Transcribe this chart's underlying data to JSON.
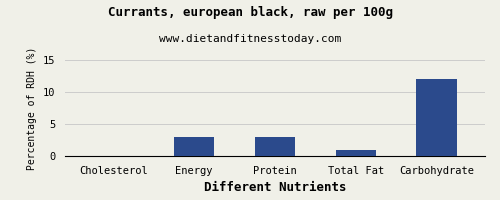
{
  "title": "Currants, european black, raw per 100g",
  "subtitle": "www.dietandfitnesstoday.com",
  "xlabel": "Different Nutrients",
  "ylabel": "Percentage of RDH (%)",
  "categories": [
    "Cholesterol",
    "Energy",
    "Protein",
    "Total Fat",
    "Carbohydrate"
  ],
  "values": [
    0,
    3,
    3,
    1,
    12
  ],
  "bar_color": "#2b4a8c",
  "ylim": [
    0,
    15
  ],
  "yticks": [
    0,
    5,
    10,
    15
  ],
  "background_color": "#f0f0e8",
  "title_fontsize": 9,
  "subtitle_fontsize": 8,
  "xlabel_fontsize": 9,
  "ylabel_fontsize": 7,
  "tick_fontsize": 7.5,
  "grid_color": "#cccccc"
}
